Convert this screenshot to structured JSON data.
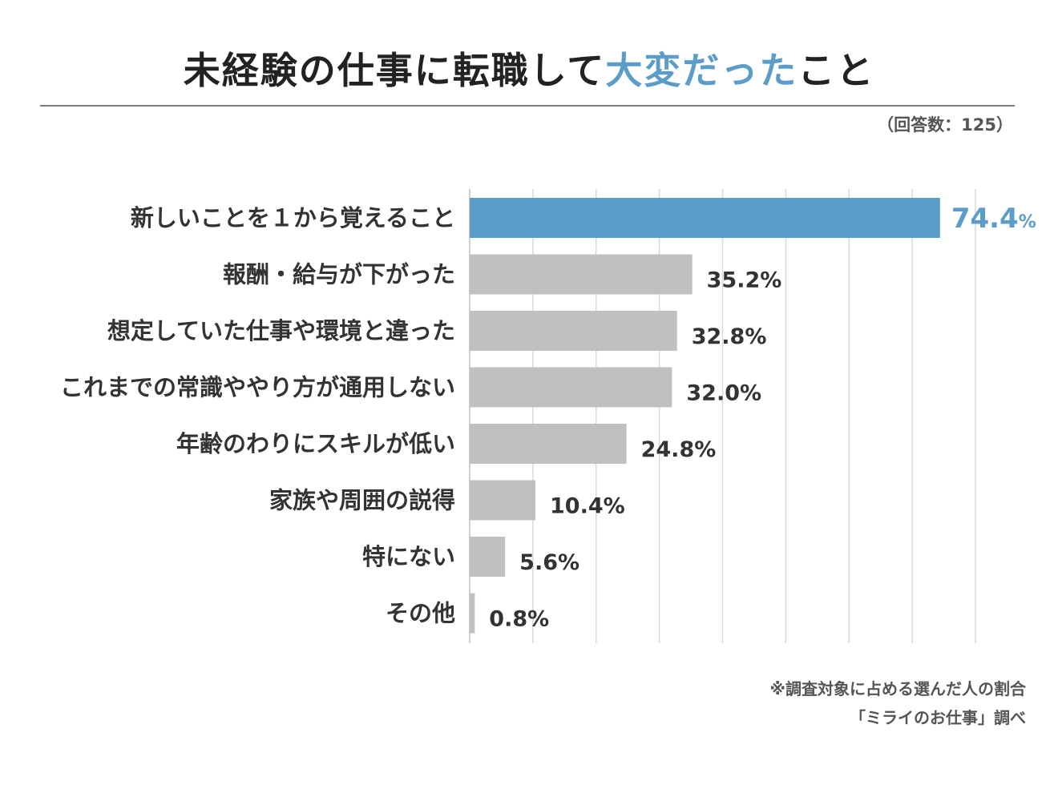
{
  "title": {
    "main": "未経験の仕事に転職して",
    "highlight": "大変だった",
    "tail": "こと"
  },
  "respondents": "（回答数：125）",
  "chart_data": {
    "type": "bar",
    "orientation": "horizontal",
    "title": "未経験の仕事に転職して大変だったこと",
    "categories": [
      "新しいことを１から覚えること",
      "報酬・給与が下がった",
      "想定していた仕事や環境と違った",
      "これまでの常識ややり方が通用しない",
      "年齢のわりにスキルが低い",
      "家族や周囲の説得",
      "特にない",
      "その他"
    ],
    "values": [
      74.4,
      35.2,
      32.8,
      32.0,
      24.8,
      10.4,
      5.6,
      0.8
    ],
    "value_labels": [
      "74.4",
      "35.2%",
      "32.8%",
      "32.0%",
      "24.8%",
      "10.4%",
      "5.6%",
      "0.8%"
    ],
    "highlight_unit": "%",
    "unit": "%",
    "xlim": [
      0,
      80
    ],
    "gridline_step": 10,
    "grid": true,
    "xlabel": "",
    "ylabel": "",
    "highlight_index": 0
  },
  "colors": {
    "highlight": "#5b9dc8",
    "bar": "#c0c0c0",
    "grid": "#d9d9d9",
    "axis": "#bfbfbf",
    "label": "#333333"
  },
  "notes": {
    "line1": "※調査対象に占める選んだ人の割合",
    "line2": "「ミライのお仕事」調べ"
  }
}
